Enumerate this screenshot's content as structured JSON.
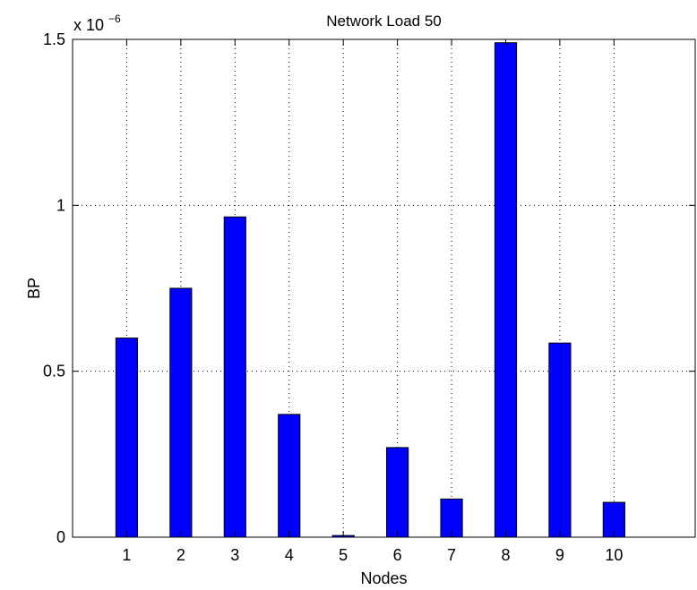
{
  "chart_data": {
    "type": "bar",
    "title": "Network Load 50",
    "xlabel": "Nodes",
    "ylabel": "BP",
    "multiplier": {
      "base": "x 10",
      "exponent": "−6"
    },
    "categories": [
      "1",
      "2",
      "3",
      "4",
      "5",
      "6",
      "7",
      "8",
      "9",
      "10"
    ],
    "values": [
      0.6,
      0.75,
      0.965,
      0.37,
      0.005,
      0.27,
      0.115,
      1.49,
      0.585,
      0.105
    ],
    "xlim": [
      0,
      11.5
    ],
    "ylim": [
      0,
      1.5
    ],
    "yticks": [
      {
        "value": 0,
        "label": "0"
      },
      {
        "value": 0.5,
        "label": "0.5"
      },
      {
        "value": 1,
        "label": "1"
      },
      {
        "value": 1.5,
        "label": "1.5"
      }
    ],
    "grid": true,
    "bar_color": "#0000ff",
    "bar_edge_color": "#000000"
  }
}
